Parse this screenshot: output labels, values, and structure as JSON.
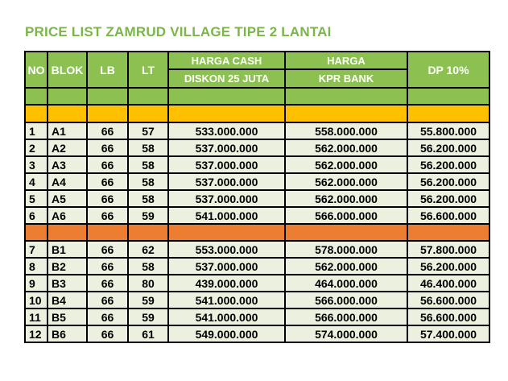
{
  "title": "PRICE LIST ZAMRUD VILLAGE TIPE 2 LANTAI",
  "headers": {
    "no": "NO",
    "blok": "BLOK",
    "lb": "LB",
    "lt": "LT",
    "cash_top": "HARGA CASH",
    "cash_bottom": "DISKON 25 JUTA",
    "kpr_top": "HARGA",
    "kpr_bottom": "KPR BANK",
    "dp": "DP 10%"
  },
  "colors": {
    "header_green": "#8cc152",
    "title_green": "#7ab648",
    "separator_yellow": "#ffc000",
    "separator_orange": "#ed7d31",
    "row_bg": "#ebf1de"
  },
  "group_a": [
    {
      "no": "1",
      "blok": "A1",
      "lb": "66",
      "lt": "57",
      "cash": "533.000.000",
      "kpr": "558.000.000",
      "dp": "55.800.000"
    },
    {
      "no": "2",
      "blok": "A2",
      "lb": "66",
      "lt": "58",
      "cash": "537.000.000",
      "kpr": "562.000.000",
      "dp": "56.200.000"
    },
    {
      "no": "3",
      "blok": "A3",
      "lb": "66",
      "lt": "58",
      "cash": "537.000.000",
      "kpr": "562.000.000",
      "dp": "56.200.000"
    },
    {
      "no": "4",
      "blok": "A4",
      "lb": "66",
      "lt": "58",
      "cash": "537.000.000",
      "kpr": "562.000.000",
      "dp": "56.200.000"
    },
    {
      "no": "5",
      "blok": "A5",
      "lb": "66",
      "lt": "58",
      "cash": "537.000.000",
      "kpr": "562.000.000",
      "dp": "56.200.000"
    },
    {
      "no": "6",
      "blok": "A6",
      "lb": "66",
      "lt": "59",
      "cash": "541.000.000",
      "kpr": "566.000.000",
      "dp": "56.600.000"
    }
  ],
  "group_b": [
    {
      "no": "7",
      "blok": "B1",
      "lb": "66",
      "lt": "62",
      "cash": "553.000.000",
      "kpr": "578.000.000",
      "dp": "57.800.000"
    },
    {
      "no": "8",
      "blok": "B2",
      "lb": "66",
      "lt": "58",
      "cash": "537.000.000",
      "kpr": "562.000.000",
      "dp": "56.200.000"
    },
    {
      "no": "9",
      "blok": "B3",
      "lb": "66",
      "lt": "80",
      "cash": "439.000.000",
      "kpr": "464.000.000",
      "dp": "46.400.000"
    },
    {
      "no": "10",
      "blok": "B4",
      "lb": "66",
      "lt": "59",
      "cash": "541.000.000",
      "kpr": "566.000.000",
      "dp": "56.600.000"
    },
    {
      "no": "11",
      "blok": "B5",
      "lb": "66",
      "lt": "59",
      "cash": "541.000.000",
      "kpr": "566.000.000",
      "dp": "56.600.000"
    },
    {
      "no": "12",
      "blok": "B6",
      "lb": "66",
      "lt": "61",
      "cash": "549.000.000",
      "kpr": "574.000.000",
      "dp": "57.400.000"
    }
  ]
}
